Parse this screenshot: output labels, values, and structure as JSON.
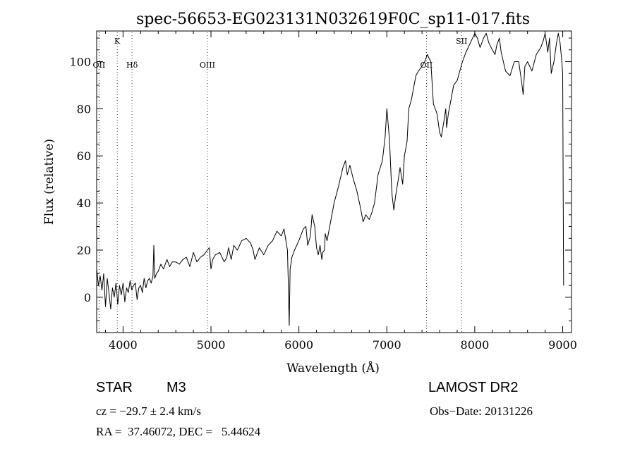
{
  "chart_data": {
    "type": "line",
    "title": "spec-56653-EG023131N032619F0C_sp11-017.fits",
    "xlabel": "Wavelength (Å)",
    "ylabel": "Flux (relative)",
    "xlim": [
      3700,
      9100
    ],
    "ylim": [
      -15,
      113
    ],
    "x_ticks": [
      4000,
      5000,
      6000,
      7000,
      8000,
      9000
    ],
    "y_ticks": [
      0,
      20,
      40,
      60,
      80,
      100
    ],
    "grid": false,
    "series": [
      {
        "x": [
          3700,
          3720,
          3740,
          3760,
          3780,
          3800,
          3820,
          3840,
          3860,
          3880,
          3900,
          3920,
          3940,
          3960,
          3980,
          4000,
          4020,
          4040,
          4060,
          4080,
          4100,
          4120,
          4140,
          4160,
          4180,
          4200,
          4220,
          4240,
          4260,
          4280,
          4300,
          4320,
          4340,
          4350,
          4360,
          4380,
          4400,
          4430,
          4460,
          4500,
          4530,
          4560,
          4600,
          4640,
          4680,
          4720,
          4760,
          4800,
          4840,
          4880,
          4920,
          4960,
          4980,
          5000,
          5020,
          5050,
          5100,
          5150,
          5180,
          5200,
          5230,
          5260,
          5300,
          5350,
          5400,
          5450,
          5480,
          5500,
          5550,
          5600,
          5650,
          5700,
          5750,
          5800,
          5830,
          5870,
          5880,
          5890,
          5900,
          5920,
          5950,
          6000,
          6050,
          6080,
          6100,
          6130,
          6150,
          6180,
          6200,
          6220,
          6240,
          6260,
          6270,
          6290,
          6300,
          6320,
          6350,
          6400,
          6450,
          6500,
          6530,
          6550,
          6580,
          6620,
          6660,
          6700,
          6730,
          6760,
          6800,
          6830,
          6860,
          6900,
          6950,
          6980,
          7000,
          7030,
          7050,
          7060,
          7080,
          7100,
          7130,
          7150,
          7180,
          7200,
          7230,
          7250,
          7280,
          7300,
          7330,
          7360,
          7400,
          7430,
          7460,
          7500,
          7530,
          7570,
          7600,
          7620,
          7650,
          7670,
          7680,
          7700,
          7730,
          7760,
          7800,
          7830,
          7860,
          7900,
          7950,
          8000,
          8030,
          8060,
          8100,
          8130,
          8160,
          8200,
          8230,
          8250,
          8280,
          8300,
          8350,
          8400,
          8450,
          8500,
          8530,
          8550,
          8570,
          8600,
          8650,
          8700,
          8750,
          8780,
          8800,
          8830,
          8850,
          8870,
          8900,
          8930,
          8950,
          8970,
          8990,
          9000,
          9010
        ],
        "y": [
          12,
          5,
          9,
          3,
          10,
          -4,
          8,
          2,
          -5,
          4,
          0,
          6,
          -3,
          5,
          1,
          6,
          -2,
          4,
          2,
          7,
          3,
          5,
          6,
          -1,
          4,
          5,
          2,
          8,
          4,
          7,
          8,
          6,
          9,
          22,
          8,
          10,
          11,
          14,
          12,
          16,
          13,
          15,
          15,
          14,
          16,
          17,
          13,
          19,
          15,
          17,
          18,
          20,
          21,
          12,
          16,
          18,
          19,
          15,
          17,
          21,
          16,
          22,
          20,
          24,
          25,
          23,
          20,
          16,
          21,
          18,
          22,
          24,
          28,
          26,
          29,
          20,
          5,
          -12,
          12,
          17,
          20,
          24,
          29,
          30,
          22,
          26,
          35,
          30,
          21,
          18,
          22,
          16,
          19,
          20,
          27,
          24,
          30,
          40,
          47,
          55,
          58,
          52,
          56,
          50,
          45,
          38,
          32,
          35,
          33,
          36,
          40,
          52,
          58,
          68,
          80,
          67,
          50,
          43,
          37,
          43,
          50,
          55,
          48,
          60,
          66,
          80,
          84,
          88,
          94,
          96,
          98,
          100,
          103,
          100,
          82,
          78,
          70,
          68,
          75,
          80,
          72,
          78,
          84,
          90,
          92,
          96,
          100,
          104,
          108,
          112,
          110,
          106,
          110,
          112,
          108,
          105,
          103,
          107,
          110,
          104,
          96,
          94,
          100,
          100,
          92,
          86,
          98,
          100,
          96,
          103,
          106,
          109,
          112,
          104,
          110,
          95,
          100,
          108,
          112,
          108,
          100,
          95,
          5
        ]
      }
    ],
    "annotations": [
      {
        "label": "OII",
        "x": 3727
      },
      {
        "label": "K",
        "x": 3934
      },
      {
        "label": "Hδ",
        "x": 4102
      },
      {
        "label": "OIII",
        "x": 4959
      },
      {
        "label": "OII",
        "x": 7450
      },
      {
        "label": "SII",
        "x": 7850
      }
    ]
  },
  "info": {
    "object_class": "STAR",
    "subclass": "M3",
    "survey": "LAMOST DR2",
    "cz_line": "cz = −29.7 ± 2.4 km/s",
    "obs_date_line": "Obs−Date: 20131226",
    "radec_line": "RA =  37.46072, DEC =   5.44624"
  }
}
